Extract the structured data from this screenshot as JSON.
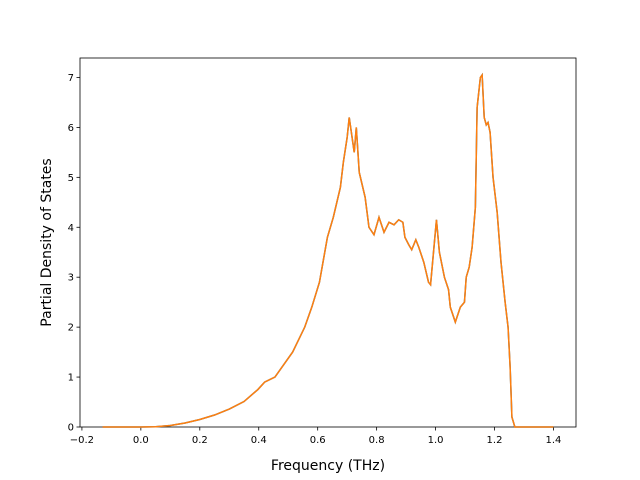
{
  "chart_data": {
    "type": "line",
    "x_label": "Frequency (THz)",
    "y_label": "Partial Density of States",
    "x": [
      -0.13,
      0.0,
      0.05,
      0.1,
      0.15,
      0.2,
      0.25,
      0.3,
      0.35,
      0.397,
      0.42,
      0.455,
      0.515,
      0.556,
      0.58,
      0.606,
      0.633,
      0.653,
      0.665,
      0.677,
      0.687,
      0.7,
      0.707,
      0.724,
      0.731,
      0.741,
      0.761,
      0.774,
      0.791,
      0.808,
      0.825,
      0.842,
      0.859,
      0.875,
      0.889,
      0.896,
      0.909,
      0.919,
      0.933,
      0.943,
      0.96,
      0.976,
      0.983,
      1.003,
      1.013,
      1.03,
      1.044,
      1.05,
      1.067,
      1.084,
      1.098,
      1.104,
      1.114,
      1.124,
      1.135,
      1.141,
      1.152,
      1.158,
      1.165,
      1.172,
      1.178,
      1.185,
      1.195,
      1.209,
      1.222,
      1.236,
      1.246,
      1.253,
      1.259,
      1.269,
      1.4
    ],
    "series": [
      {
        "color": "#1f77b4",
        "values": [
          0,
          0,
          0.005,
          0.03,
          0.08,
          0.15,
          0.24,
          0.36,
          0.51,
          0.75,
          0.9,
          1.0,
          1.5,
          2.0,
          2.4,
          2.9,
          3.8,
          4.2,
          4.5,
          4.8,
          5.3,
          5.8,
          6.2,
          5.5,
          6.0,
          5.1,
          4.6,
          4.0,
          3.85,
          4.2,
          3.9,
          4.1,
          4.05,
          4.15,
          4.1,
          3.8,
          3.65,
          3.55,
          3.75,
          3.6,
          3.3,
          2.9,
          2.85,
          4.15,
          3.5,
          3.0,
          2.75,
          2.4,
          2.1,
          2.4,
          2.5,
          3.0,
          3.2,
          3.6,
          4.4,
          6.4,
          7.0,
          7.05,
          6.2,
          6.05,
          6.1,
          5.9,
          5.0,
          4.3,
          3.3,
          2.5,
          2.0,
          1.2,
          0.2,
          0,
          0
        ]
      },
      {
        "color": "#ff7f0e",
        "values": [
          0,
          0,
          0.005,
          0.03,
          0.08,
          0.15,
          0.24,
          0.36,
          0.51,
          0.75,
          0.9,
          1.0,
          1.5,
          2.0,
          2.4,
          2.9,
          3.8,
          4.2,
          4.5,
          4.8,
          5.3,
          5.8,
          6.2,
          5.5,
          6.0,
          5.1,
          4.6,
          4.0,
          3.85,
          4.2,
          3.9,
          4.1,
          4.05,
          4.15,
          4.1,
          3.8,
          3.65,
          3.55,
          3.75,
          3.6,
          3.3,
          2.9,
          2.85,
          4.15,
          3.5,
          3.0,
          2.75,
          2.4,
          2.1,
          2.4,
          2.5,
          3.0,
          3.2,
          3.6,
          4.4,
          6.4,
          7.0,
          7.05,
          6.2,
          6.05,
          6.1,
          5.9,
          5.0,
          4.3,
          3.3,
          2.5,
          2.0,
          1.2,
          0.2,
          0,
          0
        ]
      }
    ],
    "xlim": [
      -0.2065,
      1.4765
    ],
    "ylim": [
      0,
      7.39
    ],
    "xticks": [
      {
        "value": -0.2,
        "label": "−0.2"
      },
      {
        "value": 0,
        "label": "0.0"
      },
      0.2,
      0.4,
      0.6,
      0.8,
      {
        "value": 1,
        "label": "1.0"
      },
      1.2,
      1.4
    ],
    "yticks": [
      0,
      1,
      2,
      3,
      4,
      5,
      6,
      7
    ]
  }
}
